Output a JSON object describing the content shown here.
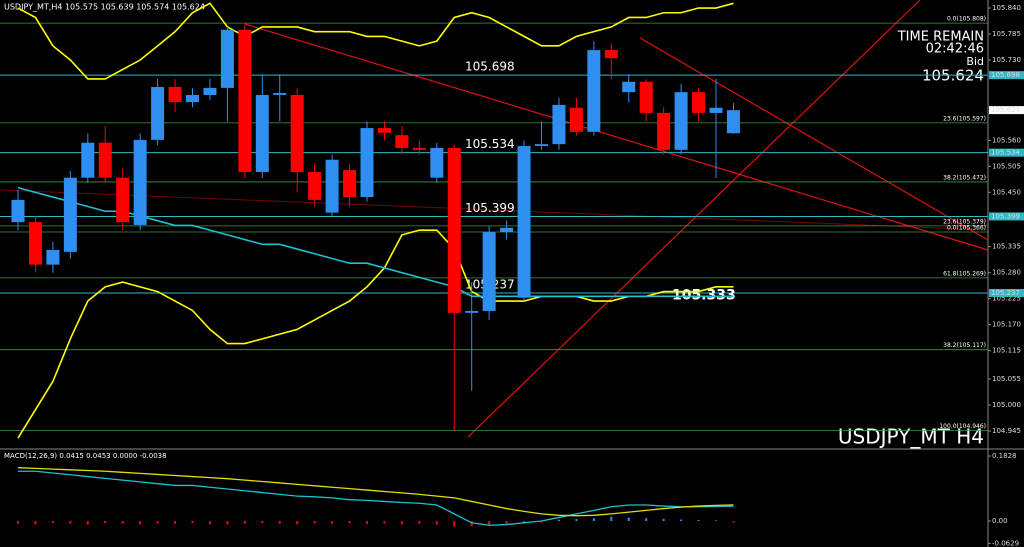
{
  "chart_data": [
    {
      "type": "candlestick",
      "title": "USDJPY_MT,H4 105.575 105.639 105.574 105.624",
      "watermark": "USDJPY_MT H4",
      "info": {
        "time_remain_label": "TIME REMAIN",
        "time_remain": "02:42:46",
        "bid_label": "Bid",
        "bid": "105.624"
      },
      "open": [
        105.387,
        105.387,
        105.297,
        105.324,
        105.481,
        105.555,
        105.481,
        105.381,
        105.561,
        105.673,
        105.641,
        105.656,
        105.671,
        105.794,
        105.493,
        105.656,
        105.656,
        105.493,
        105.407,
        105.497,
        105.44,
        105.586,
        105.571,
        105.544,
        105.481,
        105.544,
        105.195,
        105.199,
        105.366,
        105.227,
        105.548,
        105.552,
        105.629,
        105.578,
        105.751,
        105.662,
        105.684,
        105.618,
        105.54,
        105.662,
        105.618,
        105.575
      ],
      "high": [
        105.455,
        105.4,
        105.345,
        105.495,
        105.575,
        105.59,
        105.5,
        105.575,
        105.69,
        105.69,
        105.67,
        105.69,
        105.8,
        105.805,
        105.7,
        105.7,
        105.67,
        105.51,
        105.53,
        105.51,
        105.6,
        105.6,
        105.59,
        105.56,
        105.555,
        105.55,
        105.26,
        105.38,
        105.39,
        105.56,
        105.6,
        105.65,
        105.65,
        105.77,
        105.765,
        105.7,
        105.69,
        105.63,
        105.68,
        105.67,
        105.69,
        105.639
      ],
      "low": [
        105.37,
        105.28,
        105.28,
        105.31,
        105.47,
        105.47,
        105.37,
        105.37,
        105.55,
        105.62,
        105.63,
        105.645,
        105.6,
        105.48,
        105.48,
        105.6,
        105.45,
        105.42,
        105.4,
        105.42,
        105.43,
        105.56,
        105.53,
        105.53,
        105.47,
        104.946,
        105.03,
        105.18,
        105.35,
        105.22,
        105.54,
        105.54,
        105.57,
        105.57,
        105.69,
        105.64,
        105.6,
        105.53,
        105.53,
        105.6,
        105.48,
        105.574
      ],
      "close": [
        105.434,
        105.297,
        105.328,
        105.481,
        105.555,
        105.481,
        105.387,
        105.561,
        105.673,
        105.641,
        105.656,
        105.671,
        105.794,
        105.493,
        105.656,
        105.66,
        105.493,
        105.434,
        105.519,
        105.44,
        105.586,
        105.576,
        105.544,
        105.54,
        105.544,
        105.195,
        105.199,
        105.366,
        105.375,
        105.548,
        105.552,
        105.635,
        105.578,
        105.751,
        105.734,
        105.684,
        105.618,
        105.54,
        105.662,
        105.618,
        105.629,
        105.624
      ],
      "up_color": "#2f8ff0",
      "down_color": "#ff0000",
      "lines": [
        {
          "color": "#ffff00",
          "values": [
            105.84,
            105.82,
            105.76,
            105.73,
            105.69,
            105.69,
            105.71,
            105.73,
            105.76,
            105.79,
            105.83,
            105.85,
            105.8,
            105.78,
            105.8,
            105.8,
            105.8,
            105.79,
            105.79,
            105.79,
            105.78,
            105.78,
            105.77,
            105.76,
            105.77,
            105.82,
            105.83,
            105.82,
            105.8,
            105.78,
            105.76,
            105.76,
            105.78,
            105.79,
            105.8,
            105.82,
            105.82,
            105.83,
            105.83,
            105.84,
            105.84,
            105.85
          ]
        },
        {
          "color": "#ffff00",
          "values": [
            104.93,
            104.99,
            105.05,
            105.14,
            105.22,
            105.25,
            105.26,
            105.25,
            105.24,
            105.22,
            105.2,
            105.16,
            105.13,
            105.13,
            105.14,
            105.15,
            105.16,
            105.18,
            105.2,
            105.22,
            105.25,
            105.29,
            105.36,
            105.37,
            105.37,
            105.33,
            105.24,
            105.22,
            105.22,
            105.22,
            105.23,
            105.23,
            105.23,
            105.22,
            105.22,
            105.23,
            105.23,
            105.24,
            105.24,
            105.24,
            105.25,
            105.25
          ]
        },
        {
          "color": "#20c0d0",
          "values": [
            105.46,
            105.45,
            105.44,
            105.43,
            105.42,
            105.41,
            105.41,
            105.4,
            105.39,
            105.38,
            105.38,
            105.37,
            105.36,
            105.35,
            105.34,
            105.34,
            105.33,
            105.32,
            105.31,
            105.3,
            105.3,
            105.29,
            105.28,
            105.27,
            105.26,
            105.25,
            105.23,
            105.23,
            105.23,
            105.23,
            105.23,
            105.23,
            105.23,
            105.23,
            105.23,
            105.23,
            105.23,
            105.23,
            105.23,
            105.23,
            105.23,
            105.23
          ]
        }
      ],
      "levels": [
        105.698,
        105.534,
        105.399,
        105.237
      ],
      "level_color": "#30b8c8",
      "annotations": [
        105.333
      ],
      "fib_levels": [
        {
          "value": 105.808,
          "label": "0.0(105.808)"
        },
        {
          "value": 105.597,
          "label": "23.6(105.597)"
        },
        {
          "value": 105.472,
          "label": "38.2(105.472)"
        },
        {
          "value": 105.379,
          "label": "23.6(105.379)"
        },
        {
          "value": 105.366,
          "label": "0.0(105.366)"
        },
        {
          "value": 105.269,
          "label": "61.8(105.269)"
        },
        {
          "value": 105.117,
          "label": "38.2(105.117)"
        },
        {
          "value": 104.946,
          "label": "100.0(104.946)"
        }
      ],
      "fib_color": "#3c9a3c",
      "ylim": [
        104.909,
        105.857
      ],
      "yticks": [
        {
          "value": 105.84,
          "label": "105.840"
        },
        {
          "value": 105.785,
          "label": "105.785"
        },
        {
          "value": 105.73,
          "label": "105.730"
        },
        {
          "value": 105.56,
          "label": "105.560"
        },
        {
          "value": 105.505,
          "label": "105.505"
        },
        {
          "value": 105.45,
          "label": "105.450"
        },
        {
          "value": 105.335,
          "label": "105.335"
        },
        {
          "value": 105.28,
          "label": "105.280"
        },
        {
          "value": 105.225,
          "label": "105.225"
        },
        {
          "value": 105.17,
          "label": "105.170"
        },
        {
          "value": 105.115,
          "label": "105.115"
        },
        {
          "value": 105.055,
          "label": "105.055"
        },
        {
          "value": 105.0,
          "label": "105.000"
        },
        {
          "value": 104.945,
          "label": "104.945"
        }
      ]
    },
    {
      "type": "macd",
      "title": "MACD(12,26,9) 0.0415 0.0453 0.0000 -0.0038",
      "histogram": [
        -0.008,
        -0.01,
        -0.006,
        -0.008,
        -0.01,
        -0.006,
        -0.008,
        -0.01,
        -0.007,
        -0.008,
        -0.006,
        -0.009,
        -0.01,
        -0.008,
        -0.006,
        -0.008,
        -0.009,
        -0.007,
        -0.008,
        -0.006,
        -0.008,
        -0.007,
        -0.009,
        -0.008,
        -0.01,
        -0.015,
        -0.015,
        -0.012,
        -0.01,
        -0.008,
        -0.004,
        0.004,
        0.006,
        0.008,
        0.012,
        0.01,
        0.008,
        0.006,
        0.004,
        0.003,
        0.002,
        -0.0038
      ],
      "positive_color": "#2f8ff0",
      "negative_color": "#ff0000",
      "lines": [
        {
          "color": "#20c0d0",
          "values": [
            0.14,
            0.14,
            0.135,
            0.13,
            0.125,
            0.12,
            0.115,
            0.11,
            0.105,
            0.1,
            0.1,
            0.095,
            0.09,
            0.085,
            0.08,
            0.075,
            0.07,
            0.068,
            0.065,
            0.06,
            0.058,
            0.055,
            0.052,
            0.05,
            0.045,
            0.02,
            -0.005,
            -0.012,
            -0.01,
            -0.005,
            0.0,
            0.01,
            0.02,
            0.03,
            0.04,
            0.045,
            0.045,
            0.042,
            0.04,
            0.04,
            0.041,
            0.0415
          ]
        },
        {
          "color": "#e0e000",
          "values": [
            0.15,
            0.148,
            0.146,
            0.144,
            0.142,
            0.14,
            0.137,
            0.134,
            0.131,
            0.128,
            0.125,
            0.122,
            0.119,
            0.115,
            0.111,
            0.107,
            0.103,
            0.099,
            0.095,
            0.091,
            0.087,
            0.083,
            0.079,
            0.075,
            0.07,
            0.065,
            0.055,
            0.045,
            0.035,
            0.027,
            0.02,
            0.016,
            0.015,
            0.016,
            0.02,
            0.025,
            0.03,
            0.035,
            0.039,
            0.042,
            0.044,
            0.0453
          ]
        }
      ],
      "ylim": [
        -0.0675,
        0.1997
      ],
      "yticks": [
        0.1828,
        {
          "value": 0,
          "label": "0.00"
        },
        -0.0629
      ]
    }
  ]
}
